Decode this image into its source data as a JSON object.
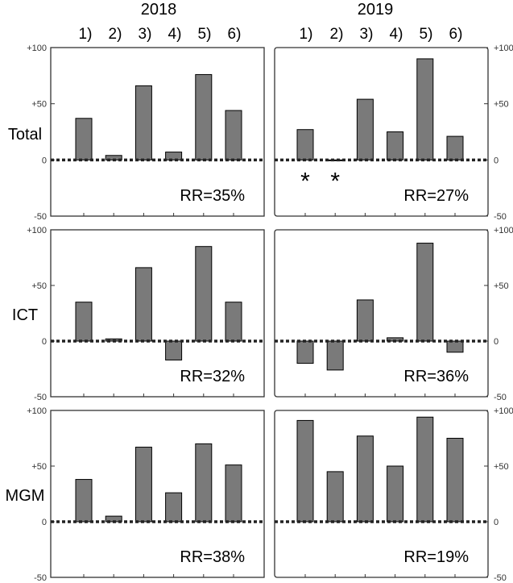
{
  "chart_data": {
    "type": "bar",
    "columns": [
      "2018",
      "2019"
    ],
    "categories": [
      "1)",
      "2)",
      "3)",
      "4)",
      "5)",
      "6)"
    ],
    "ytick_labels": [
      "+100",
      "+50",
      "0",
      "-50"
    ],
    "ylim": [
      -50,
      100
    ],
    "zero_line": "dotted",
    "colors": {
      "bar": "#7a7a7a",
      "bar_edge": "#000000"
    },
    "panels": [
      {
        "row": "Total",
        "year": "2018",
        "values": [
          37,
          4,
          66,
          7,
          76,
          44
        ],
        "rr": "RR=35%",
        "markers": []
      },
      {
        "row": "Total",
        "year": "2019",
        "values": [
          27,
          0,
          54,
          25,
          90,
          21
        ],
        "rr": "RR=27%",
        "markers": [
          0,
          1
        ],
        "marker_text": "*"
      },
      {
        "row": "ICT",
        "year": "2018",
        "values": [
          35,
          2,
          66,
          -17,
          85,
          35
        ],
        "rr": "RR=32%",
        "markers": []
      },
      {
        "row": "ICT",
        "year": "2019",
        "values": [
          -20,
          -26,
          37,
          3,
          88,
          -10
        ],
        "rr": "RR=36%",
        "markers": []
      },
      {
        "row": "MGM",
        "year": "2018",
        "values": [
          38,
          5,
          67,
          26,
          70,
          51
        ],
        "rr": "RR=38%",
        "markers": []
      },
      {
        "row": "MGM",
        "year": "2019",
        "values": [
          91,
          45,
          77,
          50,
          94,
          75
        ],
        "rr": "RR=19%",
        "markers": []
      }
    ],
    "rows": [
      "Total",
      "ICT",
      "MGM"
    ]
  }
}
